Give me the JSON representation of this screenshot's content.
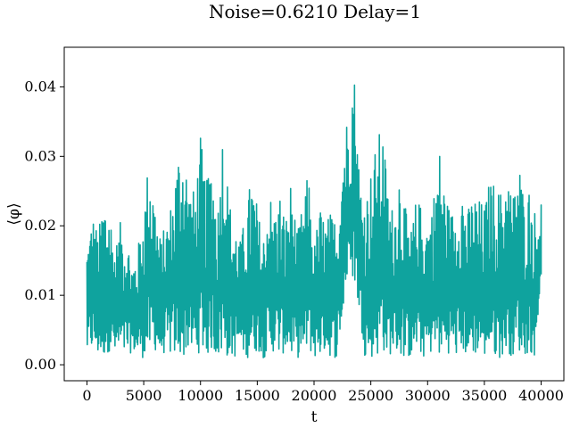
{
  "chart_data": {
    "type": "line",
    "title": "Noise=0.6210 Delay=1",
    "xlabel": "t",
    "ylabel": "⟨φ⟩",
    "xlim": [
      -2000,
      42000
    ],
    "ylim": [
      -0.0023,
      0.0457
    ],
    "xticks": [
      0,
      5000,
      10000,
      15000,
      20000,
      25000,
      30000,
      35000,
      40000
    ],
    "xtick_labels": [
      "0",
      "5000",
      "10000",
      "15000",
      "20000",
      "25000",
      "30000",
      "35000",
      "40000"
    ],
    "yticks": [
      0.0,
      0.01,
      0.02,
      0.03,
      0.04
    ],
    "ytick_labels": [
      "0.00",
      "0.01",
      "0.02",
      "0.03",
      "0.04"
    ],
    "grid": false,
    "legend": "none",
    "series": [
      {
        "color": "#0fa39e",
        "x": [
          0,
          500,
          1000,
          1500,
          2000,
          2500,
          3000,
          3500,
          4000,
          4500,
          5000,
          5500,
          6000,
          6500,
          7000,
          7500,
          8000,
          8500,
          9000,
          9500,
          10000,
          10500,
          11000,
          11500,
          12000,
          12500,
          13000,
          13500,
          14000,
          14500,
          15000,
          15500,
          16000,
          16500,
          17000,
          17500,
          18000,
          18500,
          19000,
          19500,
          20000,
          20500,
          21000,
          21500,
          22000,
          22500,
          23000,
          23500,
          24000,
          24500,
          25000,
          25500,
          26000,
          26500,
          27000,
          27500,
          28000,
          28500,
          29000,
          29500,
          30000,
          30500,
          31000,
          31500,
          32000,
          32500,
          33000,
          33500,
          34000,
          34500,
          35000,
          35500,
          36000,
          36500,
          37000,
          37500,
          38000,
          38500,
          39000,
          39500,
          40000
        ],
        "y_high": [
          0.018,
          0.022,
          0.019,
          0.025,
          0.023,
          0.017,
          0.021,
          0.019,
          0.015,
          0.017,
          0.023,
          0.031,
          0.024,
          0.018,
          0.021,
          0.024,
          0.031,
          0.033,
          0.026,
          0.025,
          0.033,
          0.026,
          0.031,
          0.022,
          0.036,
          0.024,
          0.021,
          0.018,
          0.022,
          0.028,
          0.023,
          0.018,
          0.026,
          0.022,
          0.025,
          0.021,
          0.027,
          0.019,
          0.023,
          0.028,
          0.017,
          0.023,
          0.021,
          0.022,
          0.021,
          0.032,
          0.037,
          0.044,
          0.028,
          0.024,
          0.028,
          0.032,
          0.035,
          0.026,
          0.022,
          0.029,
          0.023,
          0.019,
          0.024,
          0.023,
          0.021,
          0.024,
          0.032,
          0.026,
          0.022,
          0.023,
          0.027,
          0.022,
          0.025,
          0.024,
          0.023,
          0.027,
          0.026,
          0.025,
          0.029,
          0.024,
          0.031,
          0.024,
          0.026,
          0.022,
          0.023
        ],
        "y_low": [
          0.001,
          0.002,
          0.001,
          0.001,
          0.002,
          0.001,
          0.001,
          0.001,
          0.002,
          0.001,
          0.001,
          0.001,
          0.002,
          0.001,
          0.002,
          0.001,
          0.001,
          0.001,
          0.002,
          0.001,
          0.002,
          0.001,
          0.002,
          0.001,
          0.001,
          0.001,
          0.001,
          0.002,
          0.001,
          0.001,
          0.002,
          0.001,
          0.001,
          0.002,
          0.001,
          0.002,
          0.001,
          0.001,
          0.001,
          0.002,
          0.001,
          0.001,
          0.002,
          0.001,
          0.001,
          0.006,
          0.013,
          0.012,
          0.007,
          0.001,
          0.001,
          0.001,
          0.002,
          0.001,
          0.002,
          0.001,
          0.001,
          0.001,
          0.002,
          0.001,
          0.001,
          0.002,
          0.001,
          0.001,
          0.002,
          0.001,
          0.002,
          0.001,
          0.001,
          0.002,
          0.001,
          0.002,
          0.001,
          0.001,
          0.002,
          0.001,
          0.002,
          0.001,
          0.002,
          0.001,
          0.013
        ]
      }
    ]
  }
}
